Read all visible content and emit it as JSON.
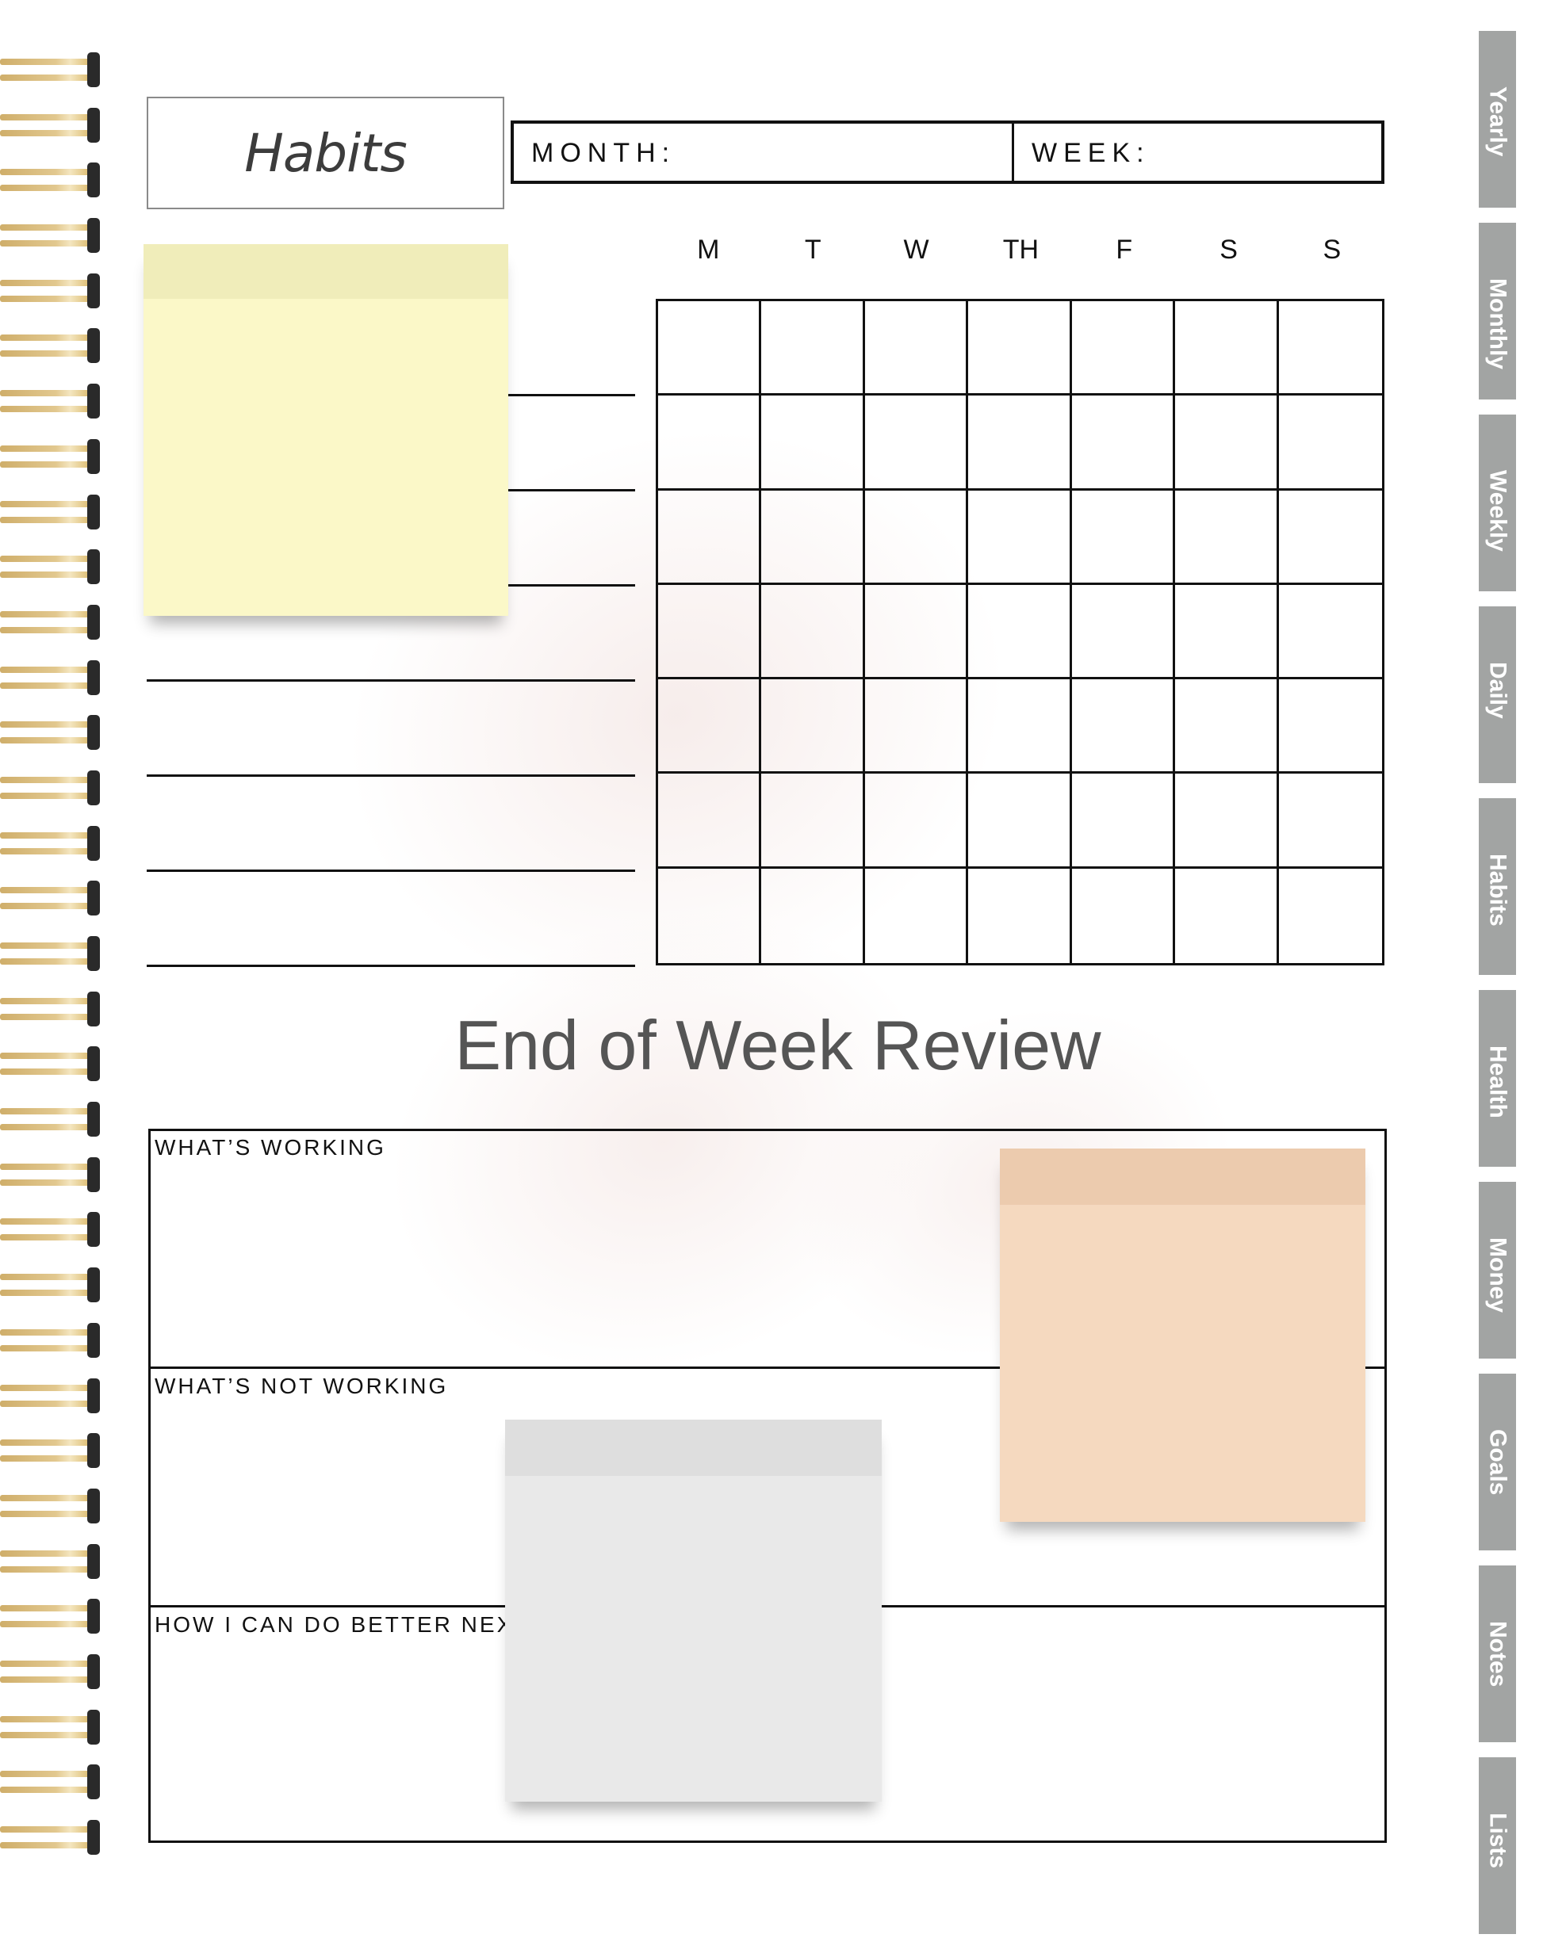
{
  "header": {
    "title": "Habits",
    "month_label": "MONTH:",
    "week_label": "WEEK:"
  },
  "days": [
    "M",
    "T",
    "W",
    "TH",
    "F",
    "S",
    "S"
  ],
  "review": {
    "title": "End of Week Review",
    "sections": [
      "WHAT’S WORKING",
      "WHAT’S NOT WORKING",
      "HOW I CAN DO BETTER NEX"
    ]
  },
  "tabs": [
    "Yearly",
    "Monthly",
    "Weekly",
    "Daily",
    "Habits",
    "Health",
    "Money",
    "Goals",
    "Notes",
    "Lists"
  ],
  "colors": {
    "sticky_yellow": "#fbf8c8",
    "sticky_peach": "#f5d9bf",
    "sticky_gray": "#e9e9e9",
    "tab": "#a2a4a3",
    "spiral_gold": "#d8b462"
  }
}
